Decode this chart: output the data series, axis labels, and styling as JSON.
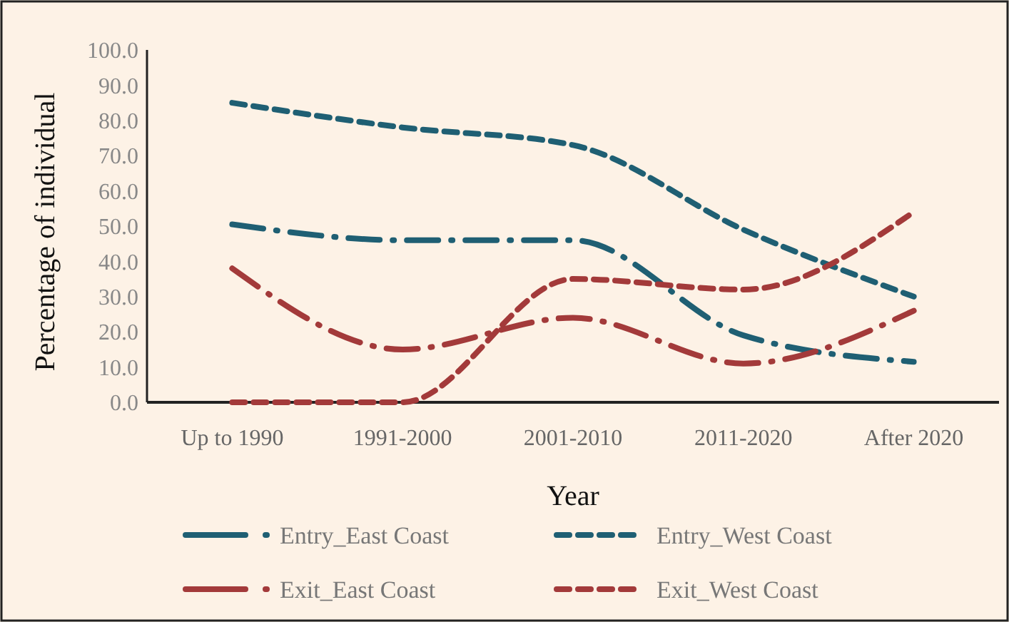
{
  "chart_data": {
    "type": "line",
    "xlabel": "Year",
    "ylabel": "Percentage of individual",
    "categories": [
      "Up to 1990",
      "1991-2000",
      "2001-2010",
      "2011-2020",
      "After 2020"
    ],
    "series": [
      {
        "name": "Entry_East Coast",
        "color": "#1f5f73",
        "line_style": "dashdot",
        "values": [
          50.5,
          46,
          46,
          19,
          11.5
        ]
      },
      {
        "name": "Entry_West Coast",
        "color": "#1f5f73",
        "line_style": "dashed",
        "values": [
          85,
          78,
          73,
          49,
          30
        ]
      },
      {
        "name": "Exit_East Coast",
        "color": "#a33a3a",
        "line_style": "dashdot",
        "values": [
          38,
          15,
          24,
          11,
          26
        ]
      },
      {
        "name": "Exit_West Coast",
        "color": "#a33a3a",
        "line_style": "dashed",
        "values": [
          0,
          0,
          35,
          32,
          54
        ]
      }
    ],
    "ylim": [
      0,
      100
    ],
    "yticks": [
      {
        "value": 0,
        "label": "0.0"
      },
      {
        "value": 10,
        "label": "10.0"
      },
      {
        "value": 20,
        "label": "20.0"
      },
      {
        "value": 30,
        "label": "30.0"
      },
      {
        "value": 40,
        "label": "40.0"
      },
      {
        "value": 50,
        "label": "50.0"
      },
      {
        "value": 60,
        "label": "60.0"
      },
      {
        "value": 70,
        "label": "70.0"
      },
      {
        "value": 80,
        "label": "80.0"
      },
      {
        "value": 90,
        "label": "90.0"
      },
      {
        "value": 100,
        "label": "100.0"
      }
    ],
    "grid": false,
    "legend": "bottom",
    "marker": "none"
  }
}
